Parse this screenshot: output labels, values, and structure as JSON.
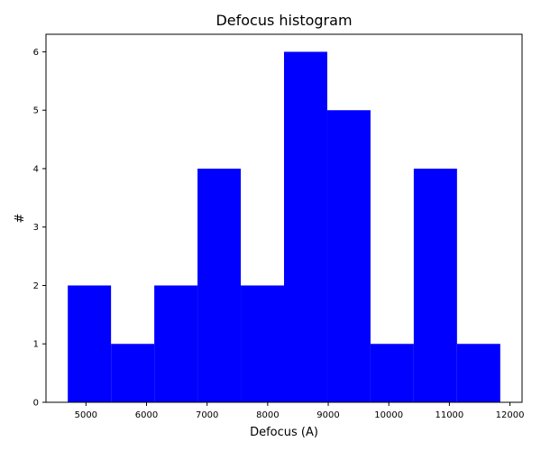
{
  "chart_data": {
    "type": "bar",
    "subtype": "histogram",
    "title": "Defocus histogram",
    "xlabel": "Defocus (A)",
    "ylabel": "#",
    "bin_edges": [
      4700,
      5414,
      6128,
      6842,
      7556,
      8270,
      8984,
      9698,
      10412,
      11126,
      11840
    ],
    "counts": [
      2,
      1,
      2,
      4,
      2,
      6,
      5,
      1,
      4,
      1
    ],
    "xlim": [
      4340,
      12200
    ],
    "ylim": [
      0,
      6.3
    ],
    "xticks": [
      5000,
      6000,
      7000,
      8000,
      9000,
      10000,
      11000,
      12000
    ],
    "yticks": [
      0,
      1,
      2,
      3,
      4,
      5,
      6
    ],
    "bar_color": "#0000ff",
    "grid": false
  }
}
